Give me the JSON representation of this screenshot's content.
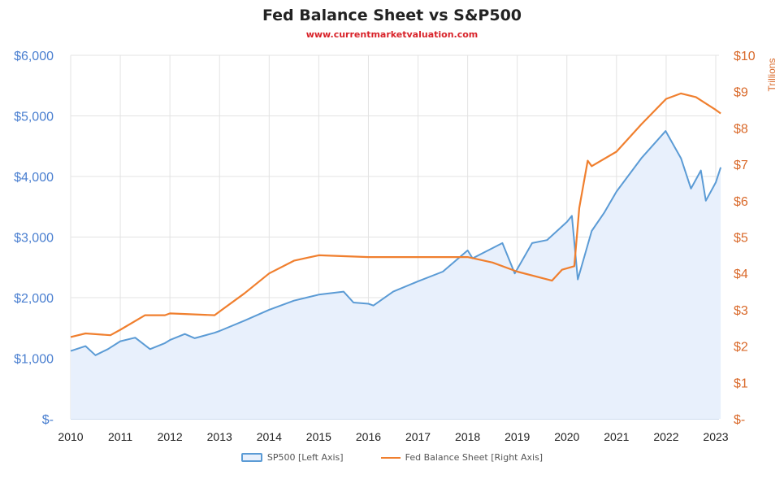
{
  "chart_data": {
    "type": "line",
    "title": "Fed Balance Sheet vs S&P500",
    "subtitle": "www.currentmarketvaluation.com",
    "x_ticks": [
      "2010",
      "2011",
      "2012",
      "2013",
      "2014",
      "2015",
      "2016",
      "2017",
      "2018",
      "2019",
      "2020",
      "2021",
      "2022",
      "2023"
    ],
    "xlim": [
      2010,
      2023.1
    ],
    "left_axis": {
      "ticks": [
        "$-",
        "$1,000",
        "$2,000",
        "$3,000",
        "$4,000",
        "$5,000",
        "$6,000"
      ],
      "ylim": [
        0,
        6000
      ],
      "color": "#4a7fd0"
    },
    "right_axis": {
      "label": "Trillions",
      "ticks": [
        "$-",
        "$1",
        "$2",
        "$3",
        "$4",
        "$5",
        "$6",
        "$7",
        "$8",
        "$9",
        "$10"
      ],
      "ylim": [
        0,
        10
      ],
      "color": "#d9692a"
    },
    "grid": true,
    "legend_placement": "bottom",
    "series": [
      {
        "name": "SP500 [Left Axis]",
        "axis": "left",
        "style": "area",
        "color": "#5b9bd5",
        "fill": "#e8f0fc",
        "x": [
          2010.0,
          2010.3,
          2010.5,
          2010.75,
          2011.0,
          2011.3,
          2011.6,
          2011.9,
          2012.0,
          2012.3,
          2012.5,
          2012.9,
          2013.0,
          2013.5,
          2014.0,
          2014.5,
          2015.0,
          2015.5,
          2015.7,
          2016.0,
          2016.1,
          2016.5,
          2017.0,
          2017.5,
          2018.0,
          2018.1,
          2018.7,
          2018.95,
          2019.3,
          2019.6,
          2020.0,
          2020.1,
          2020.22,
          2020.5,
          2020.75,
          2021.0,
          2021.5,
          2021.99,
          2022.3,
          2022.5,
          2022.7,
          2022.8,
          2023.0,
          2023.1
        ],
        "y": [
          1120,
          1200,
          1050,
          1150,
          1280,
          1340,
          1150,
          1250,
          1300,
          1400,
          1330,
          1420,
          1450,
          1620,
          1800,
          1950,
          2050,
          2100,
          1920,
          1900,
          1870,
          2100,
          2270,
          2430,
          2780,
          2650,
          2900,
          2400,
          2900,
          2950,
          3250,
          3350,
          2300,
          3100,
          3400,
          3750,
          4300,
          4750,
          4300,
          3800,
          4100,
          3600,
          3900,
          4150
        ]
      },
      {
        "name": "Fed Balance Sheet [Right Axis]",
        "axis": "right",
        "style": "line",
        "color": "#f07f2e",
        "x": [
          2010.0,
          2010.3,
          2010.8,
          2011.0,
          2011.5,
          2011.9,
          2012.0,
          2012.9,
          2013.0,
          2013.5,
          2014.0,
          2014.5,
          2015.0,
          2016.0,
          2017.0,
          2018.0,
          2018.5,
          2019.0,
          2019.7,
          2019.9,
          2020.15,
          2020.25,
          2020.42,
          2020.5,
          2021.0,
          2021.5,
          2022.0,
          2022.3,
          2022.6,
          2023.0,
          2023.1
        ],
        "y": [
          2.25,
          2.35,
          2.3,
          2.45,
          2.85,
          2.85,
          2.9,
          2.85,
          2.95,
          3.45,
          4.0,
          4.35,
          4.5,
          4.45,
          4.45,
          4.45,
          4.3,
          4.05,
          3.8,
          4.1,
          4.2,
          5.8,
          7.1,
          6.95,
          7.35,
          8.1,
          8.8,
          8.95,
          8.85,
          8.5,
          8.4
        ]
      }
    ]
  }
}
